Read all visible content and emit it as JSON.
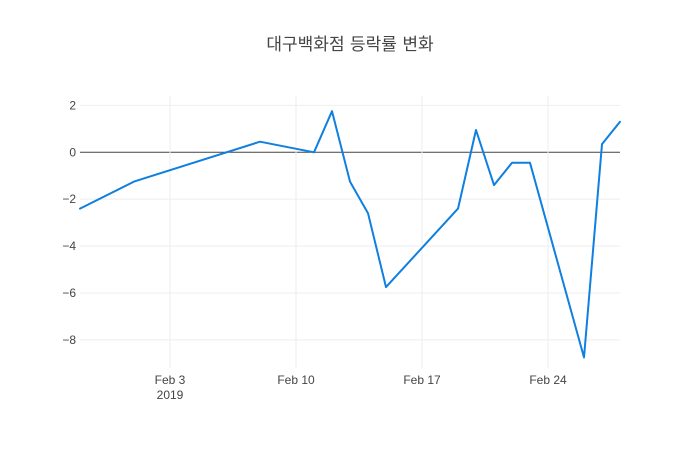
{
  "chart_data": {
    "type": "line",
    "title": "대구백화점 등락률 변화",
    "xlabel": "",
    "ylabel": "",
    "x_range": [
      "2019-01-29",
      "2019-02-27"
    ],
    "ylim": [
      -9.2,
      2.4
    ],
    "grid": true,
    "legend": "none",
    "x_ticks": [
      {
        "date": "2019-02-03",
        "label": "Feb 3",
        "sublabel": "2019"
      },
      {
        "date": "2019-02-10",
        "label": "Feb 10",
        "sublabel": ""
      },
      {
        "date": "2019-02-17",
        "label": "Feb 17",
        "sublabel": ""
      },
      {
        "date": "2019-02-24",
        "label": "Feb 24",
        "sublabel": ""
      }
    ],
    "y_ticks": [
      {
        "value": 2,
        "label": "2"
      },
      {
        "value": 0,
        "label": "0"
      },
      {
        "value": -2,
        "label": "−2"
      },
      {
        "value": -4,
        "label": "−4"
      },
      {
        "value": -6,
        "label": "−6"
      },
      {
        "value": -8,
        "label": "−8"
      }
    ],
    "series": [
      {
        "color": "#0f7fe0",
        "points": [
          {
            "x": "2019-01-29",
            "y": -2.4
          },
          {
            "x": "2019-02-01",
            "y": -1.25
          },
          {
            "x": "2019-02-08",
            "y": 0.45
          },
          {
            "x": "2019-02-11",
            "y": 0.0
          },
          {
            "x": "2019-02-12",
            "y": 1.75
          },
          {
            "x": "2019-02-13",
            "y": -1.25
          },
          {
            "x": "2019-02-14",
            "y": -2.6
          },
          {
            "x": "2019-02-15",
            "y": -5.75
          },
          {
            "x": "2019-02-19",
            "y": -2.4
          },
          {
            "x": "2019-02-20",
            "y": 0.95
          },
          {
            "x": "2019-02-21",
            "y": -1.4
          },
          {
            "x": "2019-02-22",
            "y": -0.45
          },
          {
            "x": "2019-02-23",
            "y": -0.45
          },
          {
            "x": "2019-02-26",
            "y": -8.75
          },
          {
            "x": "2019-02-27",
            "y": 0.35
          },
          {
            "x": "2019-02-28",
            "y": 1.3
          }
        ]
      }
    ]
  }
}
